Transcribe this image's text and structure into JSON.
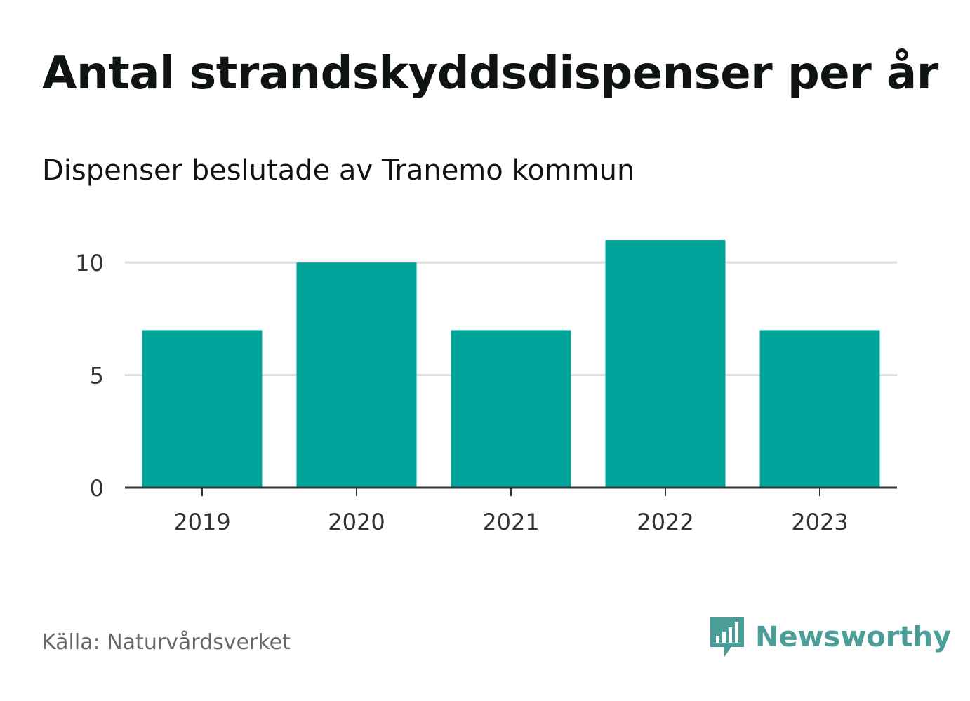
{
  "title": "Antal strandskyddsdispenser per år",
  "subtitle": "Dispenser beslutade av Tranemo kommun",
  "source": "Källa: Naturvårdsverket",
  "brand": {
    "name": "Newsworthy",
    "icon": "newsworthy-logo-icon"
  },
  "colors": {
    "bar": "#00a49a",
    "grid": "#dddddd",
    "axis": "#333333",
    "brand": "#4a9e97"
  },
  "chart_data": {
    "type": "bar",
    "categories": [
      "2019",
      "2020",
      "2021",
      "2022",
      "2023"
    ],
    "values": [
      7,
      10,
      7,
      11,
      7
    ],
    "title": "Antal strandskyddsdispenser per år",
    "xlabel": "",
    "ylabel": "",
    "ylim": [
      0,
      12
    ],
    "yticks": [
      0,
      5,
      10
    ],
    "ytick_labels": [
      "0",
      "5",
      "10"
    ],
    "grid": true
  }
}
